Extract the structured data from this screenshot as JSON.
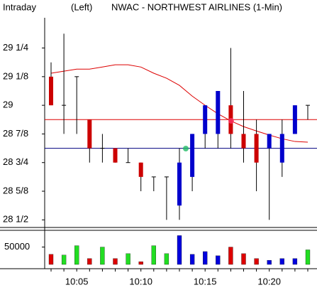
{
  "header": {
    "mode": "Intraday",
    "side": "(Left)",
    "title": "NWAC - NORTHWEST AIRLINES (1-Min)"
  },
  "chart_data": [
    {
      "type": "candlestick",
      "categories": [
        null,
        null,
        "10:05",
        null,
        null,
        null,
        null,
        "10:10",
        null,
        null,
        null,
        null,
        "10:15",
        null,
        null,
        null,
        null,
        "10:20",
        null,
        null,
        null
      ],
      "open": [
        29.125,
        29,
        29.125,
        28.9375,
        28.8125,
        28.8125,
        28.75,
        28.75,
        28.6875,
        28.6875,
        28.5625,
        28.6875,
        28.875,
        28.875,
        29,
        28.875,
        28.875,
        28.8125,
        28.75,
        28.875,
        29
      ],
      "high": [
        29.1875,
        29.3125,
        29.125,
        28.9375,
        28.875,
        28.8125,
        28.8125,
        28.75,
        28.6875,
        28.6875,
        28.8125,
        28.875,
        29,
        29.0625,
        29.25,
        29.0625,
        28.9375,
        28.875,
        28.9375,
        29,
        29
      ],
      "low": [
        29,
        28.875,
        28.875,
        28.75,
        28.75,
        28.75,
        28.75,
        28.625,
        28.625,
        28.5,
        28.5,
        28.625,
        28.8125,
        28.8125,
        28.8125,
        28.75,
        28.625,
        28.5,
        28.6875,
        28.875,
        28.9375
      ],
      "close": [
        29,
        29,
        29.125,
        28.8125,
        28.8125,
        28.75,
        28.75,
        28.6875,
        28.6875,
        28.6875,
        28.75,
        28.875,
        29,
        29.0625,
        28.875,
        28.8125,
        28.75,
        28.875,
        28.875,
        29,
        29
      ],
      "up_color": "#0000cc",
      "down_color": "#cc0000",
      "flat_color": "#000000",
      "moving_average": {
        "color": "#dd0000",
        "values": [
          29.14,
          29.149,
          29.158,
          29.158,
          29.167,
          29.177,
          29.177,
          29.167,
          29.14,
          29.118,
          29.087,
          29.04,
          29.0,
          28.963,
          28.932,
          28.907,
          28.888,
          28.87,
          28.854,
          28.842,
          28.839
        ]
      },
      "reference_lines": [
        {
          "value": 28.9375,
          "color": "#dd0000"
        },
        {
          "value": 28.8125,
          "color": "#000080"
        }
      ],
      "ylim": [
        28.473,
        29.382
      ],
      "yticks": [
        {
          "value": 28.5,
          "label": "28 1/2"
        },
        {
          "value": 28.625,
          "label": "28 5/8"
        },
        {
          "value": 28.75,
          "label": "28 3/4"
        },
        {
          "value": 28.875,
          "label": "28 7/8"
        },
        {
          "value": 29,
          "label": "29"
        },
        {
          "value": 29.125,
          "label": "29 1/8"
        },
        {
          "value": 29.25,
          "label": "29 1/4"
        }
      ]
    },
    {
      "type": "bar",
      "values": [
        29000,
        27000,
        54000,
        17000,
        50000,
        17000,
        31000,
        8000,
        54000,
        31000,
        83000,
        29000,
        37000,
        25000,
        50000,
        31000,
        17000,
        12000,
        17000,
        17000,
        42000
      ],
      "colors": [
        "#dd0000",
        "#22dd22",
        "#22dd22",
        "#dd0000",
        "#22dd22",
        "#dd0000",
        "#22dd22",
        "#dd0000",
        "#22dd22",
        "#22dd22",
        "#0000dd",
        "#0000dd",
        "#0000dd",
        "#0000dd",
        "#dd0000",
        "#dd0000",
        "#dd0000",
        "#0000dd",
        "#0000dd",
        "#0000dd",
        "#22dd22"
      ],
      "ylim": [
        0,
        90000
      ],
      "yticks": [
        50000
      ]
    }
  ]
}
